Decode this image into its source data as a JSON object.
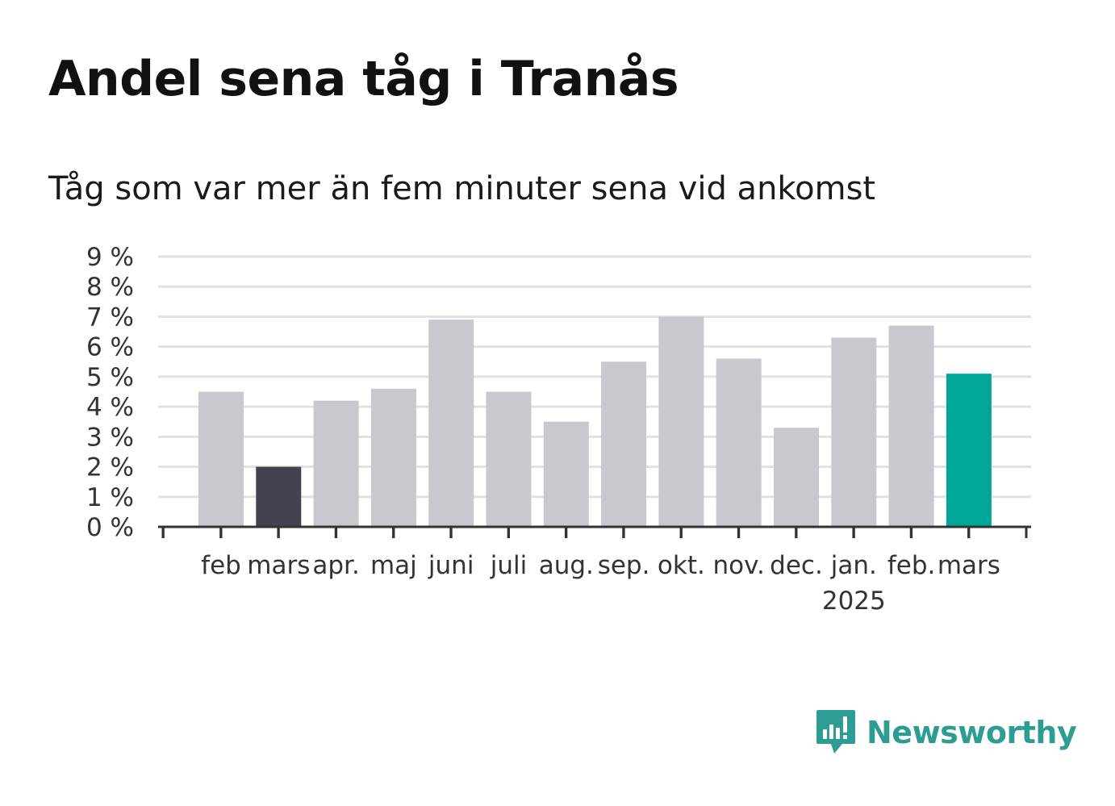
{
  "title": "Andel sena tåg i Tranås",
  "subtitle": "Tåg som var mer än fem minuter sena vid ankomst",
  "brand": {
    "name": "Newsworthy",
    "icon": "newsworthy-logo-icon",
    "color": "#2d9c92"
  },
  "chart_data": {
    "type": "bar",
    "title": "Andel sena tåg i Tranås",
    "subtitle": "Tåg som var mer än fem minuter sena vid ankomst",
    "xlabel": "",
    "ylabel": "",
    "ylim": [
      0,
      9
    ],
    "yticks": [
      0,
      1,
      2,
      3,
      4,
      5,
      6,
      7,
      8,
      9
    ],
    "ytick_labels": [
      "0 %",
      "1 %",
      "2 %",
      "3 %",
      "4 %",
      "5 %",
      "6 %",
      "7 %",
      "8 %",
      "9 %"
    ],
    "grid": true,
    "categories": [
      "feb",
      "mars",
      "apr.",
      "maj",
      "juni",
      "juli",
      "aug.",
      "sep.",
      "okt.",
      "nov.",
      "dec.",
      "jan.",
      "feb.",
      "mars"
    ],
    "year_label": {
      "text": "2025",
      "under_index": 11
    },
    "values": [
      4.5,
      2.0,
      4.2,
      4.6,
      6.9,
      4.5,
      3.5,
      5.5,
      7.0,
      5.6,
      3.3,
      6.3,
      6.7,
      5.1
    ],
    "colors": [
      "#c8c8cf",
      "#43434f",
      "#c8c8cf",
      "#c8c8cf",
      "#c8c8cf",
      "#c8c8cf",
      "#c8c8cf",
      "#c8c8cf",
      "#c8c8cf",
      "#c8c8cf",
      "#c8c8cf",
      "#c8c8cf",
      "#c8c8cf",
      "#00a698"
    ],
    "gridline_color": "#e2e2e2",
    "axis_color": "#333333"
  }
}
